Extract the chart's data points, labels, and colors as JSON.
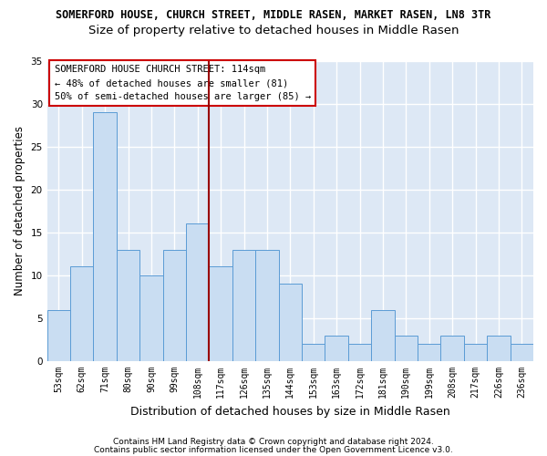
{
  "title": "SOMERFORD HOUSE, CHURCH STREET, MIDDLE RASEN, MARKET RASEN, LN8 3TR",
  "subtitle": "Size of property relative to detached houses in Middle Rasen",
  "xlabel": "Distribution of detached houses by size in Middle Rasen",
  "ylabel": "Number of detached properties",
  "footnote1": "Contains HM Land Registry data © Crown copyright and database right 2024.",
  "footnote2": "Contains public sector information licensed under the Open Government Licence v3.0.",
  "bar_labels": [
    "53sqm",
    "62sqm",
    "71sqm",
    "80sqm",
    "90sqm",
    "99sqm",
    "108sqm",
    "117sqm",
    "126sqm",
    "135sqm",
    "144sqm",
    "153sqm",
    "163sqm",
    "172sqm",
    "181sqm",
    "190sqm",
    "199sqm",
    "208sqm",
    "217sqm",
    "226sqm",
    "236sqm"
  ],
  "bar_values": [
    6,
    11,
    29,
    13,
    10,
    13,
    16,
    11,
    13,
    13,
    9,
    2,
    3,
    2,
    6,
    3,
    2,
    3,
    2,
    3,
    2
  ],
  "bar_color": "#c9ddf2",
  "bar_edge_color": "#5b9bd5",
  "vline_x": 6.5,
  "vline_color": "#990000",
  "annotation_text": "SOMERFORD HOUSE CHURCH STREET: 114sqm\n← 48% of detached houses are smaller (81)\n50% of semi-detached houses are larger (85) →",
  "annotation_box_color": "white",
  "annotation_box_edge": "#cc0000",
  "ylim": [
    0,
    35
  ],
  "yticks": [
    0,
    5,
    10,
    15,
    20,
    25,
    30,
    35
  ],
  "background_color": "#dde8f5",
  "grid_color": "white",
  "title_fontsize": 8.5,
  "subtitle_fontsize": 9.5,
  "ylabel_fontsize": 8.5,
  "xlabel_fontsize": 9,
  "tick_fontsize": 7,
  "annotation_fontsize": 7.5,
  "footnote_fontsize": 6.5
}
